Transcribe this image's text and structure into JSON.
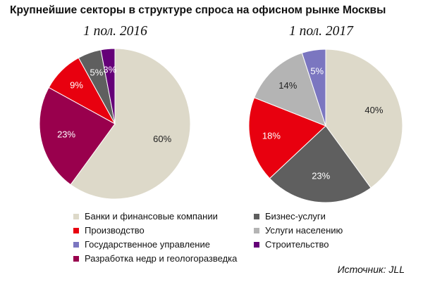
{
  "title": "Крупнейшие секторы в структуре спроса на офисном рынке Москвы",
  "source": "Источник: JLL",
  "chart_data": [
    {
      "type": "pie",
      "subtitle": "1 пол. 2016",
      "categories": [
        "Банки и финансовые компании",
        "Разработка недр и геологоразведка",
        "Производство",
        "Бизнес-услуги",
        "Строительство"
      ],
      "values": [
        60,
        23,
        9,
        5,
        3
      ],
      "labels": [
        "60%",
        "23%",
        "9%",
        "5%",
        "3%"
      ],
      "colors": [
        "#ddd9c9",
        "#99004d",
        "#e8000f",
        "#5f5f5f",
        "#650078"
      ]
    },
    {
      "type": "pie",
      "subtitle": "1 пол. 2017",
      "categories": [
        "Банки и финансовые компании",
        "Бизнес-услуги",
        "Производство",
        "Услуги населению",
        "Государственное управление"
      ],
      "values": [
        40,
        23,
        18,
        14,
        5
      ],
      "labels": [
        "40%",
        "23%",
        "18%",
        "14%",
        "5%"
      ],
      "colors": [
        "#ddd9c9",
        "#5f5f5f",
        "#e8000f",
        "#b4b4b4",
        "#7b76c0"
      ]
    }
  ],
  "legend": [
    {
      "label": "Банки и финансовые компании",
      "color": "#ddd9c9"
    },
    {
      "label": "Бизнес-услуги",
      "color": "#5f5f5f"
    },
    {
      "label": "Производство",
      "color": "#e8000f"
    },
    {
      "label": "Услуги населению",
      "color": "#b4b4b4"
    },
    {
      "label": "Государственное управление",
      "color": "#7b76c0"
    },
    {
      "label": "Строительство",
      "color": "#650078"
    },
    {
      "label": "Разработка недр и геологоразведка",
      "color": "#99004d"
    }
  ]
}
